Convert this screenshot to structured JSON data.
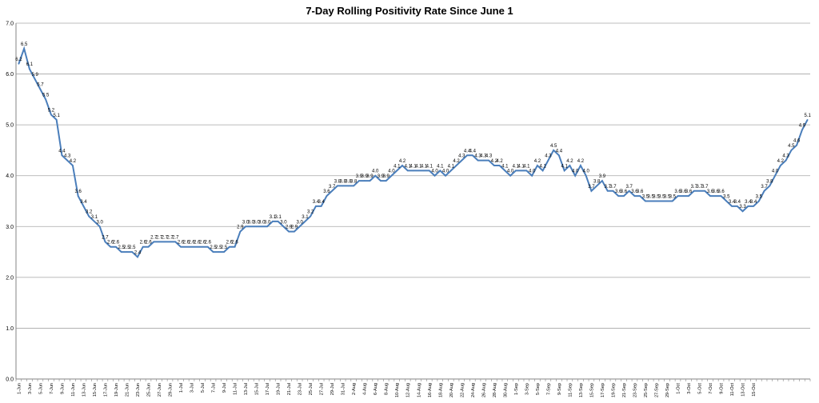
{
  "chart_data": {
    "type": "line",
    "title": "7-Day Rolling Positivity Rate Since June 1",
    "xlabel": "",
    "ylabel": "",
    "ylim": [
      0,
      7
    ],
    "yticks": [
      "0.0",
      "1.0",
      "2.0",
      "3.0",
      "4.0",
      "5.0",
      "6.0",
      "7.0"
    ],
    "grid": true,
    "legend": "none",
    "line_color": "#4a7ebb",
    "x_tick_labels": [
      "1-Jun",
      "3-Jun",
      "5-Jun",
      "7-Jun",
      "9-Jun",
      "11-Jun",
      "13-Jun",
      "15-Jun",
      "17-Jun",
      "19-Jun",
      "21-Jun",
      "23-Jun",
      "25-Jun",
      "27-Jun",
      "29-Jun",
      "1-Jul",
      "3-Jul",
      "5-Jul",
      "7-Jul",
      "9-Jul",
      "11-Jul",
      "13-Jul",
      "15-Jul",
      "17-Jul",
      "19-Jul",
      "21-Jul",
      "23-Jul",
      "25-Jul",
      "27-Jul",
      "29-Jul",
      "31-Jul",
      "2-Aug",
      "4-Aug",
      "6-Aug",
      "8-Aug",
      "10-Aug",
      "12-Aug",
      "14-Aug",
      "16-Aug",
      "18-Aug",
      "20-Aug",
      "22-Aug",
      "24-Aug",
      "26-Aug",
      "28-Aug",
      "30-Aug",
      "1-Sep",
      "3-Sep",
      "5-Sep",
      "7-Sep",
      "9-Sep",
      "11-Sep",
      "13-Sep",
      "15-Sep",
      "17-Sep",
      "19-Sep",
      "21-Sep",
      "23-Sep",
      "25-Sep",
      "27-Sep",
      "29-Sep",
      "1-Oct",
      "3-Oct",
      "5-Oct",
      "7-Oct",
      "9-Oct",
      "11-Oct",
      "13-Oct",
      "15-Oct"
    ],
    "series": [
      {
        "values": [
          6.2,
          6.5,
          6.1,
          5.9,
          5.7,
          5.5,
          5.2,
          5.1,
          4.4,
          4.3,
          4.2,
          3.6,
          3.4,
          3.2,
          3.1,
          3.0,
          2.7,
          2.6,
          2.6,
          2.5,
          2.5,
          2.5,
          2.4,
          2.6,
          2.6,
          2.7,
          2.7,
          2.7,
          2.7,
          2.7,
          2.6,
          2.6,
          2.6,
          2.6,
          2.6,
          2.6,
          2.5,
          2.5,
          2.5,
          2.6,
          2.6,
          2.9,
          3.0,
          3.0,
          3.0,
          3.0,
          3.0,
          3.1,
          3.1,
          3.0,
          2.9,
          2.9,
          3.0,
          3.1,
          3.2,
          3.4,
          3.4,
          3.6,
          3.7,
          3.8,
          3.8,
          3.8,
          3.8,
          3.9,
          3.9,
          3.9,
          4.0,
          3.9,
          3.9,
          4.0,
          4.1,
          4.2,
          4.1,
          4.1,
          4.1,
          4.1,
          4.1,
          4.0,
          4.1,
          4.0,
          4.1,
          4.2,
          4.3,
          4.4,
          4.4,
          4.3,
          4.3,
          4.3,
          4.2,
          4.2,
          4.1,
          4.0,
          4.1,
          4.1,
          4.1,
          4.0,
          4.2,
          4.1,
          4.3,
          4.5,
          4.4,
          4.1,
          4.2,
          4.0,
          4.2,
          4.0,
          3.7,
          3.8,
          3.9,
          3.7,
          3.7,
          3.6,
          3.6,
          3.7,
          3.6,
          3.6,
          3.5,
          3.5,
          3.5,
          3.5,
          3.5,
          3.5,
          3.6,
          3.6,
          3.6,
          3.7,
          3.7,
          3.7,
          3.6,
          3.6,
          3.6,
          3.5,
          3.4,
          3.4,
          3.3,
          3.4,
          3.4,
          3.5,
          3.7,
          3.8,
          4.0,
          4.2,
          4.3,
          4.5,
          4.6,
          4.9,
          5.1
        ],
        "labels": [
          "6.2",
          "6.5",
          "6.1",
          "5.9",
          "5.7",
          "5.5",
          "5.2",
          "5.1",
          "4.4",
          "4.3",
          "4.2",
          "3.6",
          "3.4",
          "3.2",
          "3.1",
          "3.0",
          "2.7",
          "2.6",
          "2.6",
          "2.5",
          "2.5",
          "2.5",
          "2.4",
          "2.6",
          "2.6",
          "2.7",
          "2.7",
          "2.7",
          "2.7",
          "2.7",
          "2.6",
          "2.6",
          "2.6",
          "2.6",
          "2.6",
          "2.6",
          "2.5",
          "2.5",
          "2.5",
          "2.6",
          "2.6",
          "2.9",
          "3.0",
          "3.0",
          "3.0",
          "3.0",
          "3.0",
          "3.1",
          "3.1",
          "3.0",
          "2.9",
          "2.9",
          "3.0",
          "3.1",
          "3.2",
          "3.4",
          "3.4",
          "3.6",
          "3.7",
          "3.8",
          "3.8",
          "3.8",
          "3.8",
          "3.9",
          "3.9",
          "3.9",
          "4.0",
          "3.9",
          "3.9",
          "4.0",
          "4.1",
          "4.2",
          "4.1",
          "4.1",
          "4.1",
          "4.1",
          "4.1",
          "4.0",
          "4.1",
          "4.0",
          "4.1",
          "4.2",
          "4.3",
          "4.4",
          "4.4",
          "4.3",
          "4.3",
          "4.3",
          "4.2",
          "4.2",
          "4.1",
          "4.0",
          "4.1",
          "4.1",
          "4.1",
          "4.0",
          "4.2",
          "4.1",
          "4.3",
          "4.5",
          "4.4",
          "4.1",
          "4.2",
          "4.0",
          "4.2",
          "4.0",
          "3.7",
          "3.8",
          "3.9",
          "3.7",
          "3.7",
          "3.6",
          "3.6",
          "3.7",
          "3.6",
          "3.6",
          "3.5",
          "3.5",
          "3.5",
          "3.5",
          "3.5",
          "3.5",
          "3.6",
          "3.6",
          "3.6",
          "3.7",
          "3.7",
          "3.7",
          "3.6",
          "3.6",
          "3.6",
          "3.5",
          "3.4",
          "3.4",
          "3.3",
          "3.4",
          "3.4",
          "3.5",
          "3.7",
          "3.8",
          "4.0",
          "4.2",
          "4.3",
          "4.5",
          "4.6",
          "4.9",
          "5.1"
        ]
      }
    ]
  }
}
